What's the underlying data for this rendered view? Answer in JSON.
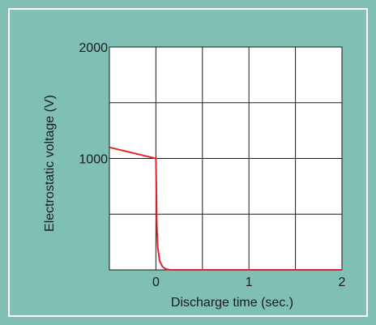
{
  "chart_data": {
    "type": "line",
    "title": "",
    "xlabel": "Discharge time (sec.)",
    "ylabel": "Electrostatic voltage (V)",
    "xlim": [
      -0.5,
      2
    ],
    "ylim": [
      0,
      2000
    ],
    "x_ticks": [
      0,
      1,
      2
    ],
    "x_tick_labels": [
      "0",
      "1",
      "2"
    ],
    "y_ticks": [
      1000,
      2000
    ],
    "y_tick_labels": [
      "1000",
      "2000"
    ],
    "grid": true,
    "legend": "none",
    "colors": {
      "line": "#e8202a",
      "grid": "#1a1a1a",
      "plot_bg": "#ffffff",
      "page_bg": "#7fbfb4"
    },
    "series": [
      {
        "x": [
          -0.5,
          0.0,
          0.0,
          0.005,
          0.01,
          0.02,
          0.04,
          0.07,
          0.1,
          0.15,
          2.0
        ],
        "y": [
          1100,
          1000,
          1000,
          700,
          400,
          200,
          80,
          30,
          10,
          0,
          0
        ]
      }
    ]
  }
}
